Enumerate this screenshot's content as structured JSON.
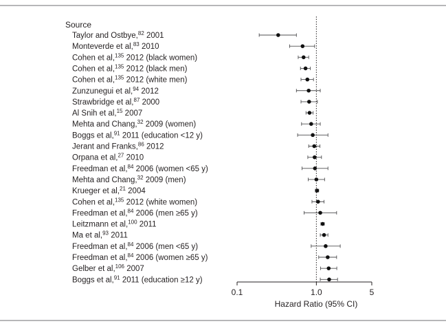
{
  "chart_data": {
    "type": "scatter",
    "subtype": "forest-plot",
    "column_header": "Source",
    "xlabel": "Hazard Ratio (95% CI)",
    "x_scale": "log",
    "xlim": [
      0.1,
      5
    ],
    "x_ticks": [
      {
        "value": 0.1,
        "label": "0.1"
      },
      {
        "value": 1.0,
        "label": "1.0"
      },
      {
        "value": 5,
        "label": "5"
      }
    ],
    "reference_line": 1.0,
    "rows": [
      {
        "name": "Taylor and Ostbye,",
        "ref": "82",
        "rest": " 2001",
        "hr": 0.33,
        "lo": 0.19,
        "hi": 0.56
      },
      {
        "name": "Monteverde et al,",
        "ref": "83",
        "rest": " 2010",
        "hr": 0.67,
        "lo": 0.46,
        "hi": 0.95
      },
      {
        "name": "Cohen et al,",
        "ref": "135",
        "rest": " 2012 (black women)",
        "hr": 0.69,
        "lo": 0.59,
        "hi": 0.8
      },
      {
        "name": "Cohen et al,",
        "ref": "135",
        "rest": " 2012 (black men)",
        "hr": 0.73,
        "lo": 0.63,
        "hi": 0.84
      },
      {
        "name": "Cohen et al,",
        "ref": "135",
        "rest": " 2012 (white men)",
        "hr": 0.77,
        "lo": 0.64,
        "hi": 0.92
      },
      {
        "name": "Zunzunegui et al,",
        "ref": "94",
        "rest": " 2012",
        "hr": 0.8,
        "lo": 0.56,
        "hi": 1.12
      },
      {
        "name": "Strawbridge et al,",
        "ref": "87",
        "rest": " 2000",
        "hr": 0.81,
        "lo": 0.64,
        "hi": 1.03
      },
      {
        "name": "Al Snih et al,",
        "ref": "15",
        "rest": " 2007",
        "hr": 0.82,
        "lo": 0.74,
        "hi": 0.91
      },
      {
        "name": "Mehta and Chang,",
        "ref": "32",
        "rest": " 2009 (women)",
        "hr": 0.86,
        "lo": 0.65,
        "hi": 1.12
      },
      {
        "name": "Boggs et al,",
        "ref": "91",
        "rest": " 2011 (education <12 y)",
        "hr": 0.9,
        "lo": 0.58,
        "hi": 1.4
      },
      {
        "name": "Jerant and Franks,",
        "ref": "86",
        "rest": " 2012",
        "hr": 0.94,
        "lo": 0.8,
        "hi": 1.11
      },
      {
        "name": "Orpana et al,",
        "ref": "27",
        "rest": " 2010",
        "hr": 0.95,
        "lo": 0.78,
        "hi": 1.16
      },
      {
        "name": "Freedman et al,",
        "ref": "84",
        "rest": " 2006 (women <65 y)",
        "hr": 0.96,
        "lo": 0.66,
        "hi": 1.4
      },
      {
        "name": "Mehta and Chang,",
        "ref": "32",
        "rest": " 2009 (men)",
        "hr": 1.0,
        "lo": 0.79,
        "hi": 1.27
      },
      {
        "name": "Krueger et al,",
        "ref": "21",
        "rest": " 2004",
        "hr": 1.02,
        "lo": 0.97,
        "hi": 1.07
      },
      {
        "name": "Cohen et al,",
        "ref": "135",
        "rest": " 2012 (white women)",
        "hr": 1.05,
        "lo": 0.88,
        "hi": 1.25
      },
      {
        "name": "Freedman et al,",
        "ref": "84",
        "rest": " 2006 (men ≥65 y)",
        "hr": 1.12,
        "lo": 0.7,
        "hi": 1.8
      },
      {
        "name": "Leitzmann et al,",
        "ref": "100",
        "rest": " 2011",
        "hr": 1.2,
        "lo": 1.14,
        "hi": 1.26
      },
      {
        "name": "Ma et al,",
        "ref": "93",
        "rest": " 2011",
        "hr": 1.25,
        "lo": 1.12,
        "hi": 1.4
      },
      {
        "name": "Freedman et al,",
        "ref": "84",
        "rest": " 2006 (men <65 y)",
        "hr": 1.31,
        "lo": 0.86,
        "hi": 2.0
      },
      {
        "name": "Freedman et al,",
        "ref": "84",
        "rest": " 2006 (women ≥65 y)",
        "hr": 1.39,
        "lo": 1.07,
        "hi": 1.8
      },
      {
        "name": "Gelber et al,",
        "ref": "106",
        "rest": " 2007",
        "hr": 1.43,
        "lo": 1.13,
        "hi": 1.81
      },
      {
        "name": "Boggs et al,",
        "ref": "91",
        "rest": " 2011 (education ≥12 y)",
        "hr": 1.45,
        "lo": 1.12,
        "hi": 1.85
      }
    ],
    "colors": {
      "marker": "#111111",
      "line": "#4d4d4f",
      "rule": "#6d6e71"
    }
  }
}
